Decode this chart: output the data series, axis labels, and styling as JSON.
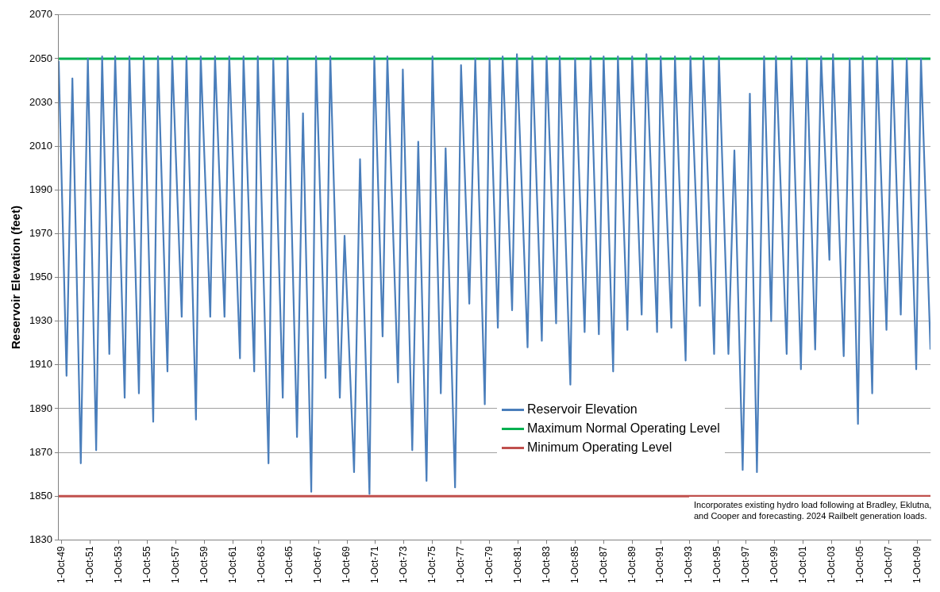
{
  "chart_data": {
    "type": "line",
    "ylabel": "Reservoir Elevation (feet)",
    "xlim": [
      "1949-07-15",
      "2010-09-01"
    ],
    "ylim": [
      1830,
      2070
    ],
    "yticks": [
      1830,
      1850,
      1870,
      1890,
      1910,
      1930,
      1950,
      1970,
      1990,
      2010,
      2030,
      2050,
      2070
    ],
    "xticks": [
      {
        "value": "1949-10-01",
        "label": "1-Oct-49"
      },
      {
        "value": "1951-10-01",
        "label": "1-Oct-51"
      },
      {
        "value": "1953-10-01",
        "label": "1-Oct-53"
      },
      {
        "value": "1955-10-01",
        "label": "1-Oct-55"
      },
      {
        "value": "1957-10-01",
        "label": "1-Oct-57"
      },
      {
        "value": "1959-10-01",
        "label": "1-Oct-59"
      },
      {
        "value": "1961-10-01",
        "label": "1-Oct-61"
      },
      {
        "value": "1963-10-01",
        "label": "1-Oct-63"
      },
      {
        "value": "1965-10-01",
        "label": "1-Oct-65"
      },
      {
        "value": "1967-10-01",
        "label": "1-Oct-67"
      },
      {
        "value": "1969-10-01",
        "label": "1-Oct-69"
      },
      {
        "value": "1971-10-01",
        "label": "1-Oct-71"
      },
      {
        "value": "1973-10-01",
        "label": "1-Oct-73"
      },
      {
        "value": "1975-10-01",
        "label": "1-Oct-75"
      },
      {
        "value": "1977-10-01",
        "label": "1-Oct-77"
      },
      {
        "value": "1979-10-01",
        "label": "1-Oct-79"
      },
      {
        "value": "1981-10-01",
        "label": "1-Oct-81"
      },
      {
        "value": "1983-10-01",
        "label": "1-Oct-83"
      },
      {
        "value": "1985-10-01",
        "label": "1-Oct-85"
      },
      {
        "value": "1987-10-01",
        "label": "1-Oct-87"
      },
      {
        "value": "1989-10-01",
        "label": "1-Oct-89"
      },
      {
        "value": "1991-10-01",
        "label": "1-Oct-91"
      },
      {
        "value": "1993-10-01",
        "label": "1-Oct-93"
      },
      {
        "value": "1995-10-01",
        "label": "1-Oct-95"
      },
      {
        "value": "1997-10-01",
        "label": "1-Oct-97"
      },
      {
        "value": "1999-10-01",
        "label": "1-Oct-99"
      },
      {
        "value": "2001-10-01",
        "label": "1-Oct-01"
      },
      {
        "value": "2003-10-01",
        "label": "1-Oct-03"
      },
      {
        "value": "2005-10-01",
        "label": "1-Oct-05"
      },
      {
        "value": "2007-10-01",
        "label": "1-Oct-07"
      },
      {
        "value": "2009-10-01",
        "label": "1-Oct-09"
      }
    ],
    "grid": "y",
    "legend": "bottom",
    "marker": "none",
    "line_style": "solid",
    "annotations": [
      "Incorporates existing hydro load following at Bradley, Eklutna, and Cooper and forecasting. 2024 Railbelt generation loads."
    ],
    "series": [
      {
        "name": "Reservoir Elevation",
        "color": "#4a7ebb",
        "type": "line",
        "x": [
          "1949-07-15",
          "1950-02",
          "1950-07",
          "1951-02",
          "1951-08",
          "1952-03",
          "1952-08",
          "1953-02",
          "1953-07",
          "1954-03",
          "1954-07",
          "1955-03",
          "1955-07",
          "1956-03",
          "1956-07",
          "1957-03",
          "1957-07",
          "1958-03",
          "1958-07",
          "1959-03",
          "1959-07",
          "1960-03",
          "1960-07",
          "1961-03",
          "1961-07",
          "1962-04",
          "1962-07",
          "1963-04",
          "1963-07",
          "1964-04",
          "1964-08",
          "1965-04",
          "1965-08",
          "1966-04",
          "1966-09",
          "1967-04",
          "1967-08",
          "1968-04",
          "1968-08",
          "1969-04",
          "1969-08",
          "1970-04",
          "1970-09",
          "1971-05",
          "1971-09",
          "1972-04",
          "1972-08",
          "1973-05",
          "1973-09",
          "1974-05",
          "1974-10",
          "1975-05",
          "1975-10",
          "1976-05",
          "1976-09",
          "1977-05",
          "1977-10",
          "1978-05",
          "1978-10",
          "1979-06",
          "1979-10",
          "1980-05",
          "1980-09",
          "1981-05",
          "1981-09",
          "1982-06",
          "1982-10",
          "1983-06",
          "1983-10",
          "1984-06",
          "1984-09",
          "1985-06",
          "1985-10",
          "1986-06",
          "1986-11",
          "1987-06",
          "1987-10",
          "1988-06",
          "1988-10",
          "1989-06",
          "1989-10",
          "1990-06",
          "1990-10",
          "1991-07",
          "1991-10",
          "1992-07",
          "1992-10",
          "1993-07",
          "1993-11",
          "1994-07",
          "1994-10",
          "1995-07",
          "1995-11",
          "1996-07",
          "1996-12",
          "1997-07",
          "1998-01",
          "1998-07",
          "1999-01",
          "1999-07",
          "1999-11",
          "2000-08",
          "2000-12",
          "2001-08",
          "2002-01",
          "2002-08",
          "2003-01",
          "2003-08",
          "2003-11",
          "2004-08",
          "2005-01",
          "2005-08",
          "2005-12",
          "2006-08",
          "2006-12",
          "2007-08",
          "2008-01",
          "2008-08",
          "2009-01",
          "2009-09",
          "2010-01",
          "2010-09-01"
        ],
        "values": [
          2049,
          1905,
          2041,
          1865,
          2050,
          1871,
          2051,
          1915,
          2051,
          1895,
          2051,
          1897,
          2051,
          1884,
          2051,
          1907,
          2051,
          1932,
          2051,
          1885,
          2051,
          1932,
          2051,
          1932,
          2051,
          1913,
          2051,
          1907,
          2051,
          1865,
          2050,
          1895,
          2051,
          1877,
          2025,
          1852,
          2051,
          1904,
          2051,
          1895,
          1969,
          1861,
          2004,
          1851,
          2051,
          1923,
          2051,
          1902,
          2045,
          1871,
          2012,
          1857,
          2051,
          1897,
          2009,
          1854,
          2047,
          1938,
          2050,
          1892,
          2050,
          1927,
          2051,
          1935,
          2052,
          1918,
          2051,
          1921,
          2051,
          1929,
          2051,
          1901,
          2050,
          1925,
          2051,
          1924,
          2051,
          1907,
          2051,
          1926,
          2051,
          1933,
          2052,
          1925,
          2051,
          1927,
          2051,
          1912,
          2051,
          1937,
          2051,
          1915,
          2051,
          1915,
          2008,
          1862,
          2034,
          1861,
          2051,
          1930,
          2051,
          1915,
          2051,
          1908,
          2050,
          1917,
          2051,
          1958,
          2052,
          1914,
          2050,
          1883,
          2051,
          1897,
          2051,
          1926,
          2050,
          1933,
          2050,
          1908,
          2050,
          1917
        ]
      },
      {
        "name": "Maximum Normal Operating Level",
        "color": "#00b050",
        "type": "line",
        "x": [
          "1949-07-15",
          "2010-09-01"
        ],
        "values": [
          2050,
          2050
        ]
      },
      {
        "name": "Minimum Operating Level",
        "color": "#c0504d",
        "type": "line",
        "x": [
          "1949-07-15",
          "2010-09-01"
        ],
        "values": [
          1850,
          1850
        ]
      }
    ]
  }
}
